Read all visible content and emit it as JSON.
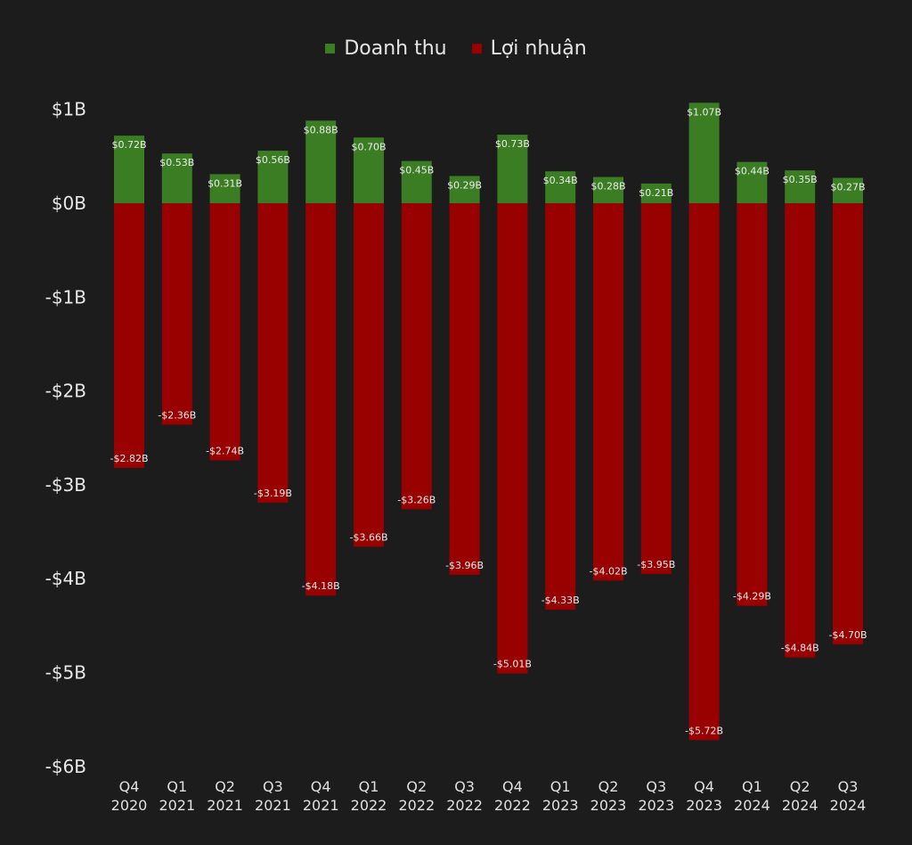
{
  "chart_data": {
    "type": "bar",
    "stacked": true,
    "legend_position": "top-center",
    "grid": false,
    "categories": [
      [
        "Q4",
        "2020"
      ],
      [
        "Q1",
        "2021"
      ],
      [
        "Q2",
        "2021"
      ],
      [
        "Q3",
        "2021"
      ],
      [
        "Q4",
        "2021"
      ],
      [
        "Q1",
        "2022"
      ],
      [
        "Q2",
        "2022"
      ],
      [
        "Q3",
        "2022"
      ],
      [
        "Q4",
        "2022"
      ],
      [
        "Q1",
        "2023"
      ],
      [
        "Q2",
        "2023"
      ],
      [
        "Q3",
        "2023"
      ],
      [
        "Q4",
        "2023"
      ],
      [
        "Q1",
        "2024"
      ],
      [
        "Q2",
        "2024"
      ],
      [
        "Q3",
        "2024"
      ]
    ],
    "series": [
      {
        "name": "Doanh thu",
        "color": "#3a7d22",
        "values": [
          0.72,
          0.53,
          0.31,
          0.56,
          0.88,
          0.7,
          0.45,
          0.29,
          0.73,
          0.34,
          0.28,
          0.21,
          1.07,
          0.44,
          0.35,
          0.27
        ],
        "labels": [
          "$0.72B",
          "$0.53B",
          "$0.31B",
          "$0.56B",
          "$0.88B",
          "$0.70B",
          "$0.45B",
          "$0.29B",
          "$0.73B",
          "$0.34B",
          "$0.28B",
          "$0.21B",
          "$1.07B",
          "$0.44B",
          "$0.35B",
          "$0.27B"
        ]
      },
      {
        "name": "Lợi nhuận",
        "color": "#990000",
        "values": [
          -2.82,
          -2.36,
          -2.74,
          -3.19,
          -4.18,
          -3.66,
          -3.26,
          -3.96,
          -5.01,
          -4.33,
          -4.02,
          -3.95,
          -5.72,
          -4.29,
          -4.84,
          -4.7
        ],
        "labels": [
          "-$2.82B",
          "-$2.36B",
          "-$2.74B",
          "-$3.19B",
          "-$4.18B",
          "-$3.66B",
          "-$3.26B",
          "-$3.96B",
          "-$5.01B",
          "-$4.33B",
          "-$4.02B",
          "-$3.95B",
          "-$5.72B",
          "-$4.29B",
          "-$4.84B",
          "-$4.70B"
        ]
      }
    ],
    "yticks": [
      1,
      0,
      -1,
      -2,
      -3,
      -4,
      -5,
      -6
    ],
    "ytick_labels": [
      "$1B",
      "$0B",
      "-$1B",
      "-$2B",
      "-$3B",
      "-$4B",
      "-$5B",
      "-$6B"
    ],
    "ylim": [
      -6,
      1.07
    ]
  }
}
